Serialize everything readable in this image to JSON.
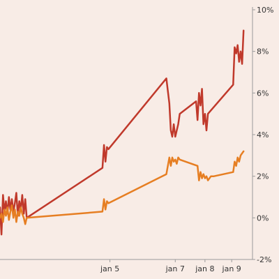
{
  "chart_data": {
    "type": "line",
    "title": "",
    "xlabel": "",
    "ylabel": "",
    "x_tick_labels": [
      "jan 5",
      "jan 7",
      "jan 8",
      "jan 9"
    ],
    "x_ticks": [
      4.7,
      6.9,
      7.9,
      8.8
    ],
    "xlim": [
      1.0,
      9.5
    ],
    "ylim": [
      -2,
      10
    ],
    "y_ticks": [
      -2,
      0,
      2,
      4,
      6,
      8,
      10
    ],
    "y_tick_labels": [
      "-2%",
      "0%",
      "2%",
      "4%",
      "6%",
      "8%",
      "10%"
    ],
    "grid": false,
    "legend": "none",
    "series": [
      {
        "color": "#c0392b",
        "x": [
          1.0,
          1.05,
          1.1,
          1.15,
          1.2,
          1.25,
          1.3,
          1.35,
          1.4,
          1.45,
          1.5,
          1.55,
          1.6,
          1.65,
          1.7,
          1.75,
          1.8,
          1.85,
          1.9,
          4.45,
          4.5,
          4.55,
          4.6,
          4.65,
          6.6,
          6.7,
          6.75,
          6.8,
          6.85,
          6.9,
          6.95,
          7.0,
          7.05,
          7.6,
          7.65,
          7.7,
          7.75,
          7.8,
          7.85,
          7.9,
          7.95,
          8.0,
          8.85,
          8.9,
          8.95,
          9.0,
          9.05,
          9.1,
          9.15,
          9.2
        ],
        "y": [
          0.5,
          -0.8,
          1.1,
          0.3,
          0.8,
          0.2,
          1.0,
          0.4,
          0.9,
          0.3,
          0.7,
          1.2,
          0.1,
          0.8,
          0.4,
          1.1,
          0.2,
          0.9,
          0.0,
          2.4,
          3.5,
          2.7,
          3.4,
          3.3,
          6.7,
          5.5,
          4.2,
          3.9,
          4.5,
          3.9,
          4.2,
          4.5,
          5.0,
          5.6,
          4.7,
          6.0,
          5.4,
          6.2,
          4.5,
          5.0,
          4.2,
          5.0,
          6.4,
          8.2,
          7.9,
          8.3,
          7.5,
          8.0,
          7.4,
          9.0
        ]
      },
      {
        "color": "#e67e22",
        "x": [
          1.0,
          1.05,
          1.1,
          1.15,
          1.2,
          1.25,
          1.3,
          1.35,
          1.4,
          1.45,
          1.5,
          1.55,
          1.6,
          1.65,
          1.7,
          1.75,
          1.8,
          1.85,
          1.9,
          4.45,
          4.5,
          4.55,
          4.6,
          4.65,
          6.6,
          6.7,
          6.75,
          6.8,
          6.85,
          6.9,
          6.95,
          7.0,
          7.05,
          7.65,
          7.7,
          7.75,
          7.8,
          7.85,
          7.9,
          7.95,
          8.0,
          8.1,
          8.2,
          8.85,
          8.9,
          8.95,
          9.0,
          9.05,
          9.1,
          9.15,
          9.2
        ],
        "y": [
          0.0,
          0.2,
          -0.2,
          0.4,
          0.1,
          0.5,
          -0.1,
          0.3,
          0.6,
          0.0,
          0.4,
          -0.2,
          0.3,
          0.1,
          0.5,
          0.2,
          0.0,
          -0.3,
          0.0,
          0.3,
          0.9,
          0.4,
          0.8,
          0.7,
          2.1,
          2.9,
          2.5,
          2.9,
          2.7,
          2.8,
          2.6,
          2.9,
          2.8,
          2.5,
          1.8,
          2.2,
          1.9,
          2.1,
          1.9,
          2.0,
          1.8,
          2.0,
          2.0,
          2.2,
          2.7,
          2.5,
          2.9,
          2.7,
          3.0,
          3.1,
          3.2
        ]
      }
    ]
  }
}
